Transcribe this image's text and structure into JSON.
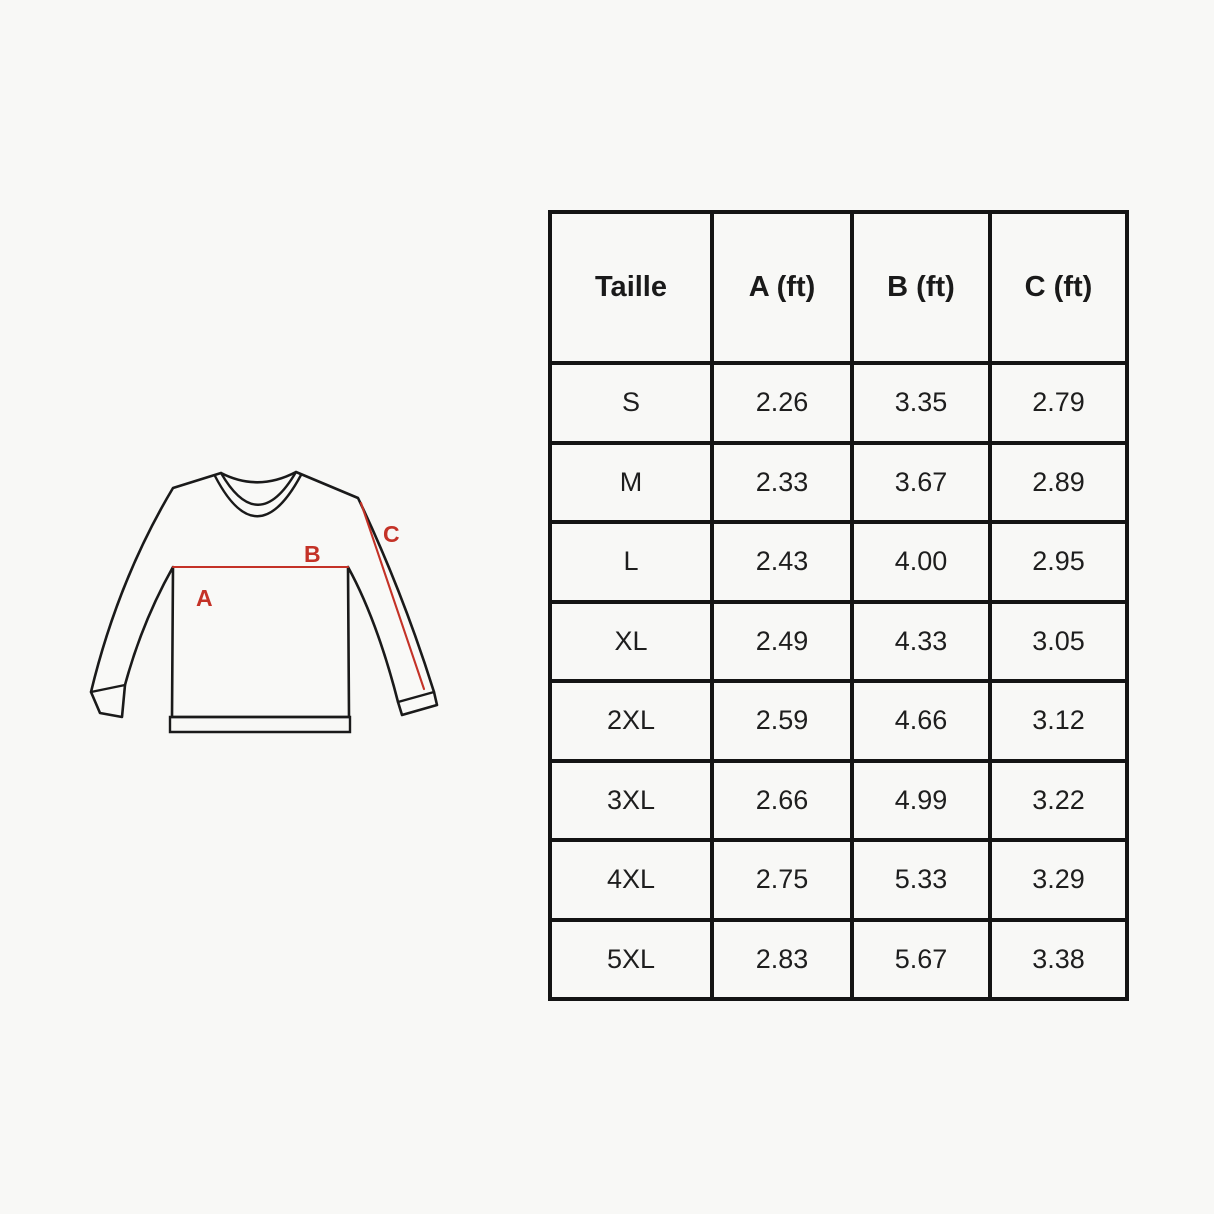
{
  "page": {
    "background_color": "#f8f8f6"
  },
  "diagram": {
    "name": "sweatshirt-measurement-diagram",
    "outline_color": "#1a1a1a",
    "accent_color": "#c43227",
    "labels": {
      "a": "A",
      "b": "B",
      "c": "C"
    }
  },
  "table": {
    "border_color": "#141414",
    "header": [
      "Taille",
      "A (ft)",
      "B (ft)",
      "C (ft)"
    ],
    "rows": [
      [
        "S",
        "2.26",
        "3.35",
        "2.79"
      ],
      [
        "M",
        "2.33",
        "3.67",
        "2.89"
      ],
      [
        "L",
        "2.43",
        "4.00",
        "2.95"
      ],
      [
        "XL",
        "2.49",
        "4.33",
        "3.05"
      ],
      [
        "2XL",
        "2.59",
        "4.66",
        "3.12"
      ],
      [
        "3XL",
        "2.66",
        "4.99",
        "3.22"
      ],
      [
        "4XL",
        "2.75",
        "5.33",
        "3.29"
      ],
      [
        "5XL",
        "2.83",
        "5.67",
        "3.38"
      ]
    ]
  },
  "chart_data": {
    "type": "table",
    "title": "",
    "columns": [
      "Taille",
      "A (ft)",
      "B (ft)",
      "C (ft)"
    ],
    "categories": [
      "S",
      "M",
      "L",
      "XL",
      "2XL",
      "3XL",
      "4XL",
      "5XL"
    ],
    "series": [
      {
        "name": "A (ft)",
        "values": [
          2.26,
          2.33,
          2.43,
          2.49,
          2.59,
          2.66,
          2.75,
          2.83
        ]
      },
      {
        "name": "B (ft)",
        "values": [
          3.35,
          3.67,
          4.0,
          4.33,
          4.66,
          4.99,
          5.33,
          5.67
        ]
      },
      {
        "name": "C (ft)",
        "values": [
          2.79,
          2.89,
          2.95,
          3.05,
          3.12,
          3.22,
          3.29,
          3.38
        ]
      }
    ]
  }
}
